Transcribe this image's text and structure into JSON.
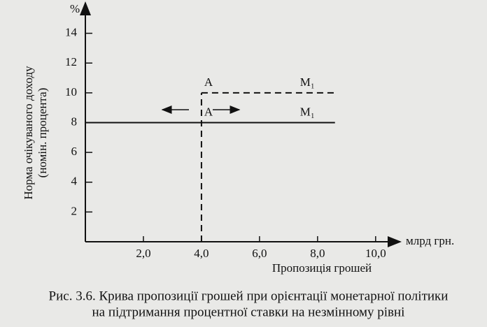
{
  "chart_data": {
    "type": "line",
    "title": [
      "Рис. 3.6. Крива пропозиції грошей при орієнтації монетарної політики",
      "на підтримання процентної ставки на незмінному рівні"
    ],
    "y_unit": "%",
    "x_unit": "млрд грн.",
    "ylabel": [
      "Норма очікуваного доходу",
      "(номін. процента)"
    ],
    "xlabel": "Пропозиція грошей",
    "xlim": [
      0,
      10.8
    ],
    "ylim": [
      0,
      16
    ],
    "xticks": [
      {
        "value": 2,
        "label": "2,0"
      },
      {
        "value": 4,
        "label": "4,0"
      },
      {
        "value": 6,
        "label": "6,0"
      },
      {
        "value": 8,
        "label": "8,0"
      },
      {
        "value": 10,
        "label": "10,0"
      }
    ],
    "yticks": [
      2,
      4,
      6,
      8,
      10,
      12,
      14
    ],
    "series": [
      {
        "name": "M₁",
        "color": "#111111",
        "dashed": true,
        "x": [
          4,
          8.6
        ],
        "values": [
          10,
          10
        ]
      },
      {
        "name": "M₁",
        "color": "#111111",
        "dashed": false,
        "x": [
          0,
          8.6
        ],
        "values": [
          8,
          8
        ]
      },
      {
        "color": "#111111",
        "dashed": true,
        "x": [
          4,
          4
        ],
        "values": [
          0,
          10
        ]
      }
    ],
    "annotations": [
      {
        "text": "A",
        "x": 4,
        "y": 10
      },
      {
        "text": "A",
        "x": 4,
        "y": 8
      }
    ]
  }
}
